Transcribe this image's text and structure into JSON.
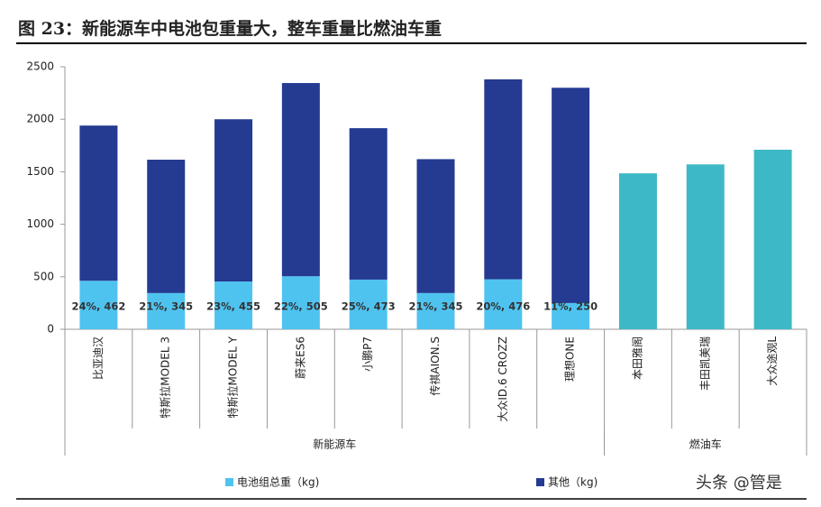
{
  "chart_data": {
    "type": "bar",
    "stacked": true,
    "title": "图 23：新能源车中电池包重量大，整车重量比燃油车重",
    "categories": [
      "比亚迪汉",
      "特斯拉MODEL 3",
      "特斯拉MODEL Y",
      "蔚来ES6",
      "小鹏P7",
      "传祺AION.S",
      "大众ID.6 CROZZ",
      "理想ONE",
      "本田雅阁",
      "丰田凯美瑞",
      "大众途观L"
    ],
    "groups": [
      {
        "label": "新能源车",
        "count": 8
      },
      {
        "label": "燃油车",
        "count": 3
      }
    ],
    "series": [
      {
        "name": "电池组总重（kg)",
        "color": "#4fc3f0",
        "values": [
          462,
          345,
          455,
          505,
          473,
          345,
          476,
          250,
          null,
          null,
          null
        ],
        "value_labels": [
          "24%, 462",
          "21%, 345",
          "23%, 455",
          "22%, 505",
          "25%, 473",
          "21%, 345",
          "20%, 476",
          "11%, 250",
          null,
          null,
          null
        ]
      },
      {
        "name": "其他（kg)",
        "color": "#253a91",
        "values": [
          1478,
          1270,
          1545,
          1840,
          1442,
          1275,
          1904,
          2050,
          null,
          null,
          null
        ]
      },
      {
        "color": "#3db8c6",
        "values": [
          null,
          null,
          null,
          null,
          null,
          null,
          null,
          null,
          1485,
          1570,
          1710
        ]
      }
    ],
    "ylim": [
      0,
      2500
    ],
    "yticks": [
      0,
      500,
      1000,
      1500,
      2000,
      2500
    ],
    "grid": false,
    "legend": "bottom"
  },
  "watermark": "头条 @管是"
}
